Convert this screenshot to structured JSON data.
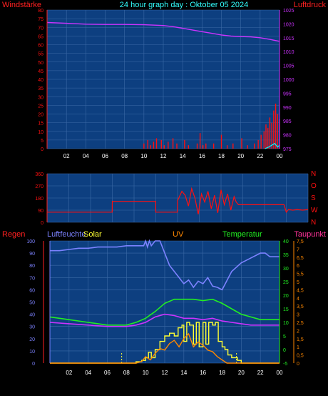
{
  "header": {
    "title": "24 hour graph day : Oktober 05 2024"
  },
  "colors": {
    "background": "#000000",
    "plot_bg": "#0d3f80",
    "grid": "#3c6aa6",
    "red": "#ff1010",
    "magenta": "#cc33ff",
    "blue_light": "#7c82ff",
    "green": "#22ee22",
    "yellow": "#ffff33",
    "orange": "#ff8800",
    "pink": "#ff3399",
    "cyan": "#00ffff",
    "tick_hours": "#ffffff"
  },
  "x_axis": {
    "tick_labels": [
      "02",
      "04",
      "06",
      "08",
      "10",
      "12",
      "14",
      "16",
      "18",
      "20",
      "22",
      "00"
    ]
  },
  "chart_data": [
    {
      "type": "line",
      "id": "wind-pressure",
      "left_label": "Windstärke",
      "right_label": "Luftdruck",
      "y_left": {
        "ticks": [
          "0",
          "5",
          "10",
          "15",
          "20",
          "25",
          "30",
          "35",
          "40",
          "45",
          "50",
          "55",
          "60",
          "65",
          "70",
          "75",
          "80"
        ],
        "range": [
          0,
          80
        ]
      },
      "y_right": {
        "ticks": [
          "975",
          "980",
          "985",
          "990",
          "995",
          "1000",
          "1005",
          "1010",
          "1015",
          "1020",
          "1025"
        ],
        "range": [
          975,
          1025
        ]
      },
      "x_range_hours": [
        0,
        24
      ],
      "series": [
        {
          "key": "pressure",
          "axis": "right",
          "color_key": "magenta",
          "x": [
            0,
            2,
            4,
            6,
            8,
            10,
            12,
            13,
            14,
            15,
            16,
            17,
            18,
            19,
            20,
            21,
            22,
            23,
            24
          ],
          "values": [
            1020.5,
            1020.2,
            1019.9,
            1019.8,
            1019.8,
            1019.7,
            1019.4,
            1019.0,
            1018.4,
            1017.8,
            1017.2,
            1016.6,
            1016.0,
            1015.6,
            1015.4,
            1015.3,
            1015.0,
            1014.4,
            1013.7
          ]
        },
        {
          "key": "wind",
          "axis": "left",
          "color_key": "red",
          "style": "spikes",
          "x": [
            10.0,
            10.4,
            10.7,
            11.0,
            11.3,
            11.8,
            12.1,
            12.5,
            13.0,
            13.4,
            14.2,
            14.6,
            15.5,
            15.8,
            16.1,
            16.4,
            17.2,
            18.0,
            18.6,
            19.2,
            20.1,
            20.7,
            21.4,
            21.8,
            22.1,
            22.4,
            22.6,
            22.8,
            23.0,
            23.2,
            23.4,
            23.6,
            23.8,
            24.0
          ],
          "values": [
            3,
            5,
            2,
            4,
            6,
            5,
            2,
            4,
            6,
            3,
            5,
            2,
            3,
            9,
            2,
            3,
            3,
            8,
            2,
            3,
            6,
            2,
            3,
            5,
            8,
            10,
            14,
            12,
            18,
            15,
            22,
            26,
            20,
            17
          ]
        },
        {
          "key": "gust",
          "axis": "left",
          "color_key": "cyan",
          "x": [
            22.5,
            22.9,
            23.2,
            23.5,
            23.8,
            24.0
          ],
          "values": [
            0,
            1,
            2,
            3,
            1,
            2
          ]
        }
      ]
    },
    {
      "type": "line",
      "id": "wind-direction",
      "y_left": {
        "ticks": [
          "0",
          "90",
          "180",
          "270",
          "360"
        ],
        "range": [
          0,
          360
        ]
      },
      "y_right": {
        "ticks": [
          "N",
          "W",
          "S",
          "O",
          "N"
        ]
      },
      "x_range_hours": [
        0,
        24
      ],
      "series": [
        {
          "key": "direction",
          "axis": "left",
          "color_key": "red",
          "x": [
            0,
            5.99,
            6.0,
            9.99,
            10.0,
            11.99,
            12.0,
            12.4,
            12.7,
            13.0,
            13.3,
            13.6,
            13.9,
            14.2,
            14.5,
            14.8,
            15.1,
            15.4,
            15.7,
            16.0,
            16.3,
            16.6,
            16.9,
            17.2,
            17.4,
            17.6,
            19.0,
            19.8,
            20.6,
            21.8,
            22.0,
            22.2,
            22.6,
            23.0,
            23.5,
            24.0
          ],
          "values": [
            75,
            75,
            155,
            155,
            75,
            75,
            160,
            230,
            200,
            120,
            250,
            180,
            60,
            210,
            150,
            230,
            100,
            200,
            70,
            240,
            130,
            210,
            90,
            190,
            150,
            130,
            130,
            130,
            130,
            130,
            75,
            95,
            90,
            95,
            90,
            95
          ]
        }
      ]
    },
    {
      "type": "line",
      "id": "weather-combined",
      "labels": {
        "rain": "Regen",
        "humidity": "Luftfeuchte",
        "solar": "Solar",
        "uv": "UV",
        "temperature": "Temperatur",
        "dewpoint": "Taupunkt"
      },
      "y_humidity": {
        "ticks": [
          "0",
          "10",
          "20",
          "30",
          "40",
          "50",
          "60",
          "70",
          "80",
          "90",
          "100"
        ],
        "range": [
          0,
          100
        ]
      },
      "y_temperature": {
        "ticks": [
          "-5",
          "0",
          "5",
          "10",
          "15",
          "20",
          "25",
          "30",
          "35",
          "40"
        ],
        "range": [
          -5,
          40
        ]
      },
      "y_uv": {
        "ticks": [
          "0",
          "0,5",
          "1",
          "1,5",
          "2",
          "2,5",
          "3",
          "3,5",
          "4",
          "4,5",
          "5",
          "5,5",
          "6",
          "6,5",
          "7",
          "7,5"
        ],
        "range": [
          0,
          7.5
        ]
      },
      "x_range_hours": [
        0,
        24
      ],
      "series": [
        {
          "key": "humidity",
          "axis": "humidity",
          "color_key": "blue_light",
          "x": [
            0,
            1,
            2,
            3,
            4,
            5,
            6,
            7,
            8,
            9,
            9.8,
            10.0,
            10.2,
            10.4,
            10.6,
            11.0,
            11.5,
            12.0,
            12.5,
            13.0,
            13.5,
            14.0,
            14.5,
            15.0,
            15.5,
            16.0,
            16.5,
            17.0,
            17.5,
            18.0,
            19.0,
            20.0,
            21.0,
            22.0,
            22.5,
            23.0,
            24.0
          ],
          "values": [
            92,
            92,
            93,
            94,
            94,
            95,
            95,
            95,
            96,
            96,
            96,
            100,
            95,
            100,
            96,
            100,
            100,
            90,
            80,
            75,
            70,
            65,
            68,
            62,
            67,
            65,
            70,
            63,
            62,
            60,
            75,
            82,
            86,
            90,
            90,
            87,
            87
          ]
        },
        {
          "key": "temperature",
          "axis": "temperature",
          "color_key": "green",
          "x": [
            0,
            2,
            4,
            6,
            8,
            9,
            10,
            11,
            12,
            13,
            14,
            15,
            16,
            17,
            18,
            19,
            20,
            21,
            22,
            23,
            24
          ],
          "values": [
            12,
            11,
            10,
            9,
            9,
            10,
            11.5,
            14,
            17,
            18.5,
            18.5,
            18.5,
            18,
            18.5,
            17,
            15,
            13,
            12,
            11,
            11,
            11
          ]
        },
        {
          "key": "dewpoint",
          "axis": "temperature",
          "color_key": "magenta",
          "x": [
            0,
            2,
            4,
            6,
            8,
            9,
            10,
            11,
            12,
            13,
            14,
            15,
            16,
            17,
            18,
            19,
            20,
            21,
            22,
            23,
            24
          ],
          "values": [
            10,
            9.5,
            9,
            8.5,
            8.5,
            9,
            10,
            12,
            13,
            12.5,
            11.5,
            11.5,
            11,
            11.5,
            10.5,
            10,
            9.5,
            9,
            9,
            9,
            9
          ]
        },
        {
          "key": "solar",
          "axis": "temperature",
          "color_key": "yellow",
          "x": [
            0,
            8,
            9.0,
            9.6,
            10.0,
            10.3,
            10.6,
            11.0,
            11.3,
            11.5,
            12.0,
            12.5,
            13.0,
            13.4,
            13.8,
            14.0,
            14.3,
            14.6,
            15.0,
            15.3,
            15.6,
            16.0,
            16.3,
            16.6,
            17.0,
            17.3,
            17.6,
            18.0,
            18.3,
            18.6,
            19.0,
            19.6,
            20.0,
            24.0
          ],
          "values": [
            -5,
            -5,
            -4.5,
            -4,
            -3,
            -1,
            -3,
            0,
            0,
            3,
            5,
            6,
            5,
            8,
            9,
            3,
            10,
            9,
            2,
            10,
            1,
            10,
            2,
            10,
            9,
            10,
            3,
            1,
            0,
            -2,
            -3,
            -4,
            -5,
            -5
          ]
        },
        {
          "key": "uv",
          "axis": "uv",
          "color_key": "orange",
          "x": [
            0,
            9.0,
            9.6,
            10.0,
            10.5,
            11.0,
            11.5,
            12.0,
            12.5,
            13.0,
            13.5,
            14.0,
            14.5,
            15.0,
            15.5,
            16.0,
            16.5,
            17.0,
            17.5,
            18.0,
            18.5,
            24.0
          ],
          "values": [
            0,
            0,
            0.1,
            0.4,
            0.2,
            0.6,
            0.9,
            0.8,
            1.2,
            1.4,
            1.0,
            1.5,
            1.8,
            1.0,
            1.3,
            1.1,
            0.8,
            0.7,
            0.4,
            0.2,
            0,
            0
          ]
        },
        {
          "key": "sun_markers",
          "axis": "temperature",
          "color_key": "yellow",
          "style": "dotted-vertical",
          "x": [
            7.5,
            19.5
          ],
          "values": [
            0,
            0
          ]
        }
      ]
    }
  ]
}
